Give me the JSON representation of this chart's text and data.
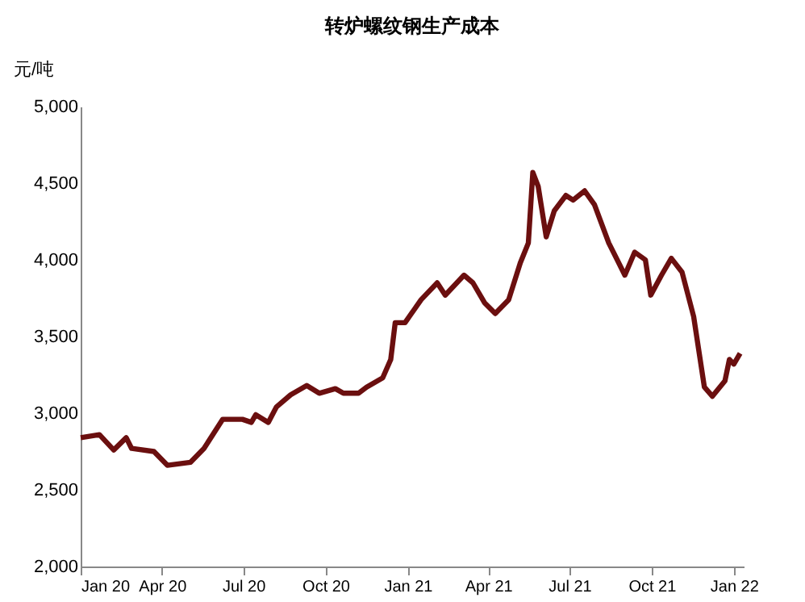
{
  "chart_data": {
    "type": "line",
    "title": "转炉螺纹钢生产成本",
    "ylabel": "元/吨",
    "x": [
      "2020-01-01",
      "2020-01-22",
      "2020-02-07",
      "2020-02-21",
      "2020-02-27",
      "2020-03-23",
      "2020-04-07",
      "2020-05-03",
      "2020-05-18",
      "2020-06-08",
      "2020-06-30",
      "2020-07-10",
      "2020-07-15",
      "2020-07-29",
      "2020-08-07",
      "2020-08-23",
      "2020-09-10",
      "2020-09-24",
      "2020-10-12",
      "2020-10-21",
      "2020-11-07",
      "2020-11-16",
      "2020-12-04",
      "2020-12-13",
      "2020-12-18",
      "2020-12-29",
      "2021-01-16",
      "2021-02-03",
      "2021-02-12",
      "2021-03-05",
      "2021-03-15",
      "2021-03-28",
      "2021-04-09",
      "2021-04-24",
      "2021-05-07",
      "2021-05-16",
      "2021-05-21",
      "2021-05-27",
      "2021-06-05",
      "2021-06-14",
      "2021-06-27",
      "2021-07-05",
      "2021-07-18",
      "2021-07-29",
      "2021-08-14",
      "2021-09-01",
      "2021-09-12",
      "2021-09-24",
      "2021-09-30",
      "2021-10-12",
      "2021-10-23",
      "2021-11-04",
      "2021-11-17",
      "2021-11-29",
      "2021-12-08",
      "2021-12-22",
      "2021-12-27",
      "2022-01-01",
      "2022-01-08"
    ],
    "series": [
      {
        "color": "#6b0f0f",
        "values": [
          2840,
          2860,
          2760,
          2840,
          2770,
          2750,
          2660,
          2680,
          2770,
          2960,
          2960,
          2940,
          2990,
          2940,
          3040,
          3120,
          3180,
          3130,
          3160,
          3130,
          3130,
          3170,
          3230,
          3350,
          3590,
          3590,
          3740,
          3850,
          3770,
          3900,
          3850,
          3720,
          3650,
          3740,
          3980,
          4110,
          4570,
          4480,
          4150,
          4320,
          4420,
          4390,
          4450,
          4360,
          4110,
          3900,
          4050,
          4000,
          3770,
          3900,
          4010,
          3920,
          3630,
          3170,
          3110,
          3210,
          3350,
          3320,
          3390
        ]
      }
    ],
    "xlim": [
      "2020-01-01",
      "2022-01-12"
    ],
    "xticks": [
      {
        "value": "2020-01-01",
        "label": "Jan 20"
      },
      {
        "value": "2020-04-01",
        "label": "Apr 20"
      },
      {
        "value": "2020-07-01",
        "label": "Jul 20"
      },
      {
        "value": "2020-10-01",
        "label": "Oct 20"
      },
      {
        "value": "2021-01-01",
        "label": "Jan 21"
      },
      {
        "value": "2021-04-01",
        "label": "Apr 21"
      },
      {
        "value": "2021-07-01",
        "label": "Jul 21"
      },
      {
        "value": "2021-10-01",
        "label": "Oct 21"
      },
      {
        "value": "2022-01-01",
        "label": "Jan 22"
      }
    ],
    "ylim": [
      2000,
      5000
    ],
    "yticks": [
      {
        "value": 2000,
        "label": "2,000"
      },
      {
        "value": 2500,
        "label": "2,500"
      },
      {
        "value": 3000,
        "label": "3,000"
      },
      {
        "value": 3500,
        "label": "3,500"
      },
      {
        "value": 4000,
        "label": "4,000"
      },
      {
        "value": 4500,
        "label": "4,500"
      },
      {
        "value": 5000,
        "label": "5,000"
      }
    ],
    "grid": false,
    "marker": "none",
    "line_style": "solid"
  }
}
